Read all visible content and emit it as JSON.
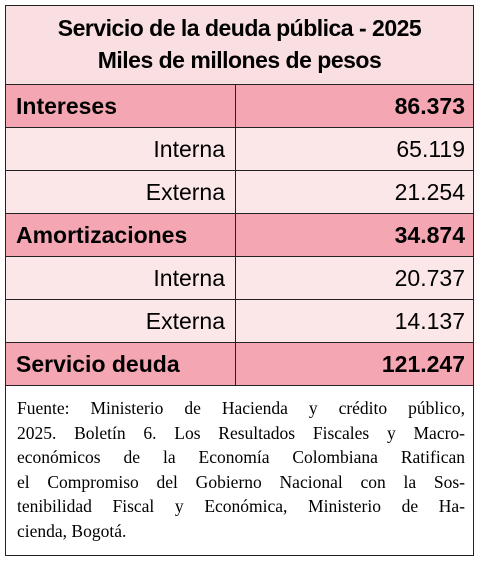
{
  "title": {
    "lines": [
      "Servicio de la deuda pública - 2025",
      "Miles de millones de pesos"
    ]
  },
  "table": {
    "rows": [
      [
        "Intereses",
        "86.373"
      ],
      [
        "Interna",
        "65.119"
      ],
      [
        "Externa",
        "21.254"
      ],
      [
        "Amortizaciones",
        "34.874"
      ],
      [
        "Interna",
        "20.737"
      ],
      [
        "Externa",
        "14.137"
      ],
      [
        "Servicio deuda",
        "121.247"
      ]
    ]
  },
  "source": {
    "lines": [
      "Fuente: Ministerio de Hacienda y crédito público,",
      "2025. Boletín 6. Los Resultados Fiscales y Macro-",
      "económicos de la Economía Colombiana Ratifican",
      "el Compromiso del Gobierno Nacional con la Sos-",
      "tenibilidad Fiscal y Económica, Ministerio de Ha-",
      "cienda, Bogotá."
    ]
  }
}
